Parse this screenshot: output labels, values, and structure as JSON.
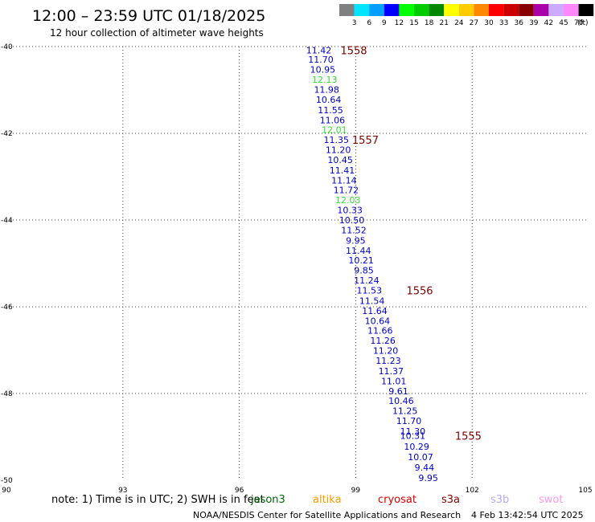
{
  "header": {
    "title": "12:00 – 23:59 UTC 01/18/2025",
    "subtitle": "12 hour collection of altimeter wave heights"
  },
  "legend": {
    "unit": "(ft)",
    "bins": [
      {
        "label": "3",
        "color": "#808080"
      },
      {
        "label": "6",
        "color": "#00e5ff"
      },
      {
        "label": "9",
        "color": "#00a0ff"
      },
      {
        "label": "12",
        "color": "#0000ff"
      },
      {
        "label": "15",
        "color": "#00ff00"
      },
      {
        "label": "18",
        "color": "#00cc00"
      },
      {
        "label": "21",
        "color": "#008800"
      },
      {
        "label": "24",
        "color": "#ffff00"
      },
      {
        "label": "27",
        "color": "#ffcc00"
      },
      {
        "label": "30",
        "color": "#ff8800"
      },
      {
        "label": "33",
        "color": "#ff0000"
      },
      {
        "label": "36",
        "color": "#cc0000"
      },
      {
        "label": "39",
        "color": "#880000"
      },
      {
        "label": "42",
        "color": "#aa00aa"
      },
      {
        "label": "45",
        "color": "#ccaaff"
      },
      {
        "label": "70",
        "color": "#ff88ff"
      },
      {
        "label": "",
        "color": "#000000"
      }
    ]
  },
  "chart_data": {
    "type": "scatter",
    "xlim": [
      90,
      105
    ],
    "ylim": [
      -50,
      -40
    ],
    "x_ticks": [
      90,
      93,
      96,
      99,
      102,
      105
    ],
    "y_ticks": [
      -40,
      -42,
      -44,
      -46,
      -48,
      -50
    ],
    "grid": true,
    "points": [
      {
        "x": 98.05,
        "y": -40.08,
        "v": "11.42",
        "c": "blue"
      },
      {
        "x": 98.1,
        "y": -40.3,
        "v": "11.70",
        "c": "blue"
      },
      {
        "x": 98.15,
        "y": -40.53,
        "v": "10.95",
        "c": "blue"
      },
      {
        "x": 98.2,
        "y": -40.76,
        "v": "12.13",
        "c": "green"
      },
      {
        "x": 98.25,
        "y": -40.99,
        "v": "11.98",
        "c": "blue"
      },
      {
        "x": 98.3,
        "y": -41.22,
        "v": "10.64",
        "c": "blue"
      },
      {
        "x": 98.35,
        "y": -41.46,
        "v": "11.55",
        "c": "blue"
      },
      {
        "x": 98.4,
        "y": -41.69,
        "v": "11.06",
        "c": "blue"
      },
      {
        "x": 98.45,
        "y": -41.92,
        "v": "12.01",
        "c": "green"
      },
      {
        "x": 98.5,
        "y": -42.15,
        "v": "11.35",
        "c": "blue"
      },
      {
        "x": 98.55,
        "y": -42.38,
        "v": "11.20",
        "c": "blue"
      },
      {
        "x": 98.6,
        "y": -42.61,
        "v": "10.45",
        "c": "blue"
      },
      {
        "x": 98.65,
        "y": -42.85,
        "v": "11.41",
        "c": "blue"
      },
      {
        "x": 98.7,
        "y": -43.08,
        "v": "11.14",
        "c": "blue"
      },
      {
        "x": 98.75,
        "y": -43.31,
        "v": "11.72",
        "c": "blue"
      },
      {
        "x": 98.8,
        "y": -43.54,
        "v": "12.03",
        "c": "green"
      },
      {
        "x": 98.85,
        "y": -43.77,
        "v": "10.33",
        "c": "blue"
      },
      {
        "x": 98.9,
        "y": -44.0,
        "v": "10.50",
        "c": "blue"
      },
      {
        "x": 98.95,
        "y": -44.23,
        "v": "11.52",
        "c": "blue"
      },
      {
        "x": 99.0,
        "y": -44.47,
        "v": "9.95",
        "c": "blue"
      },
      {
        "x": 99.07,
        "y": -44.7,
        "v": "11.44",
        "c": "blue"
      },
      {
        "x": 99.14,
        "y": -44.93,
        "v": "10.21",
        "c": "blue"
      },
      {
        "x": 99.21,
        "y": -45.16,
        "v": "9.85",
        "c": "blue"
      },
      {
        "x": 99.28,
        "y": -45.39,
        "v": "11.24",
        "c": "blue"
      },
      {
        "x": 99.35,
        "y": -45.62,
        "v": "11.53",
        "c": "blue"
      },
      {
        "x": 99.42,
        "y": -45.86,
        "v": "11.54",
        "c": "blue"
      },
      {
        "x": 99.49,
        "y": -46.09,
        "v": "11.64",
        "c": "blue"
      },
      {
        "x": 99.56,
        "y": -46.32,
        "v": "10.64",
        "c": "blue"
      },
      {
        "x": 99.63,
        "y": -46.55,
        "v": "11.66",
        "c": "blue"
      },
      {
        "x": 99.7,
        "y": -46.78,
        "v": "11.26",
        "c": "blue"
      },
      {
        "x": 99.77,
        "y": -47.01,
        "v": "11.20",
        "c": "blue"
      },
      {
        "x": 99.84,
        "y": -47.24,
        "v": "11.23",
        "c": "blue"
      },
      {
        "x": 99.91,
        "y": -47.48,
        "v": "11.37",
        "c": "blue"
      },
      {
        "x": 99.98,
        "y": -47.71,
        "v": "11.01",
        "c": "blue"
      },
      {
        "x": 100.1,
        "y": -47.94,
        "v": "9.61",
        "c": "blue"
      },
      {
        "x": 100.17,
        "y": -48.17,
        "v": "10.46",
        "c": "blue"
      },
      {
        "x": 100.27,
        "y": -48.4,
        "v": "11.25",
        "c": "blue"
      },
      {
        "x": 100.37,
        "y": -48.63,
        "v": "11.70",
        "c": "blue"
      },
      {
        "x": 100.47,
        "y": -48.87,
        "v": "11.30",
        "c": "blue"
      },
      {
        "x": 100.47,
        "y": -48.97,
        "v": "10.31",
        "c": "blue"
      },
      {
        "x": 100.57,
        "y": -49.22,
        "v": "10.29",
        "c": "blue"
      },
      {
        "x": 100.67,
        "y": -49.46,
        "v": "10.07",
        "c": "blue"
      },
      {
        "x": 100.77,
        "y": -49.7,
        "v": "9.44",
        "c": "blue"
      },
      {
        "x": 100.87,
        "y": -49.94,
        "v": "9.95",
        "c": "blue"
      }
    ],
    "pass_labels": [
      {
        "x": 98.95,
        "y": -40.08,
        "label": "1558"
      },
      {
        "x": 99.25,
        "y": -42.15,
        "label": "1557"
      },
      {
        "x": 100.65,
        "y": -45.62,
        "label": "1556"
      },
      {
        "x": 101.9,
        "y": -48.97,
        "label": "1555"
      }
    ]
  },
  "footer": {
    "note": "note: 1) Time is in UTC; 2) SWH is in feet",
    "satellites": [
      {
        "name": "jason3",
        "color": "#006600"
      },
      {
        "name": "altika",
        "color": "#ff9900"
      },
      {
        "name": "cryosat",
        "color": "#dd0000"
      },
      {
        "name": "s3a",
        "color": "#880000"
      },
      {
        "name": "s3b",
        "color": "#bbaaee"
      },
      {
        "name": "swot",
        "color": "#ff99ee"
      }
    ],
    "credit": "NOAA/NESDIS Center for Satellite Applications and Research",
    "timestamp": "4 Feb 13:42:54 UTC 2025"
  }
}
